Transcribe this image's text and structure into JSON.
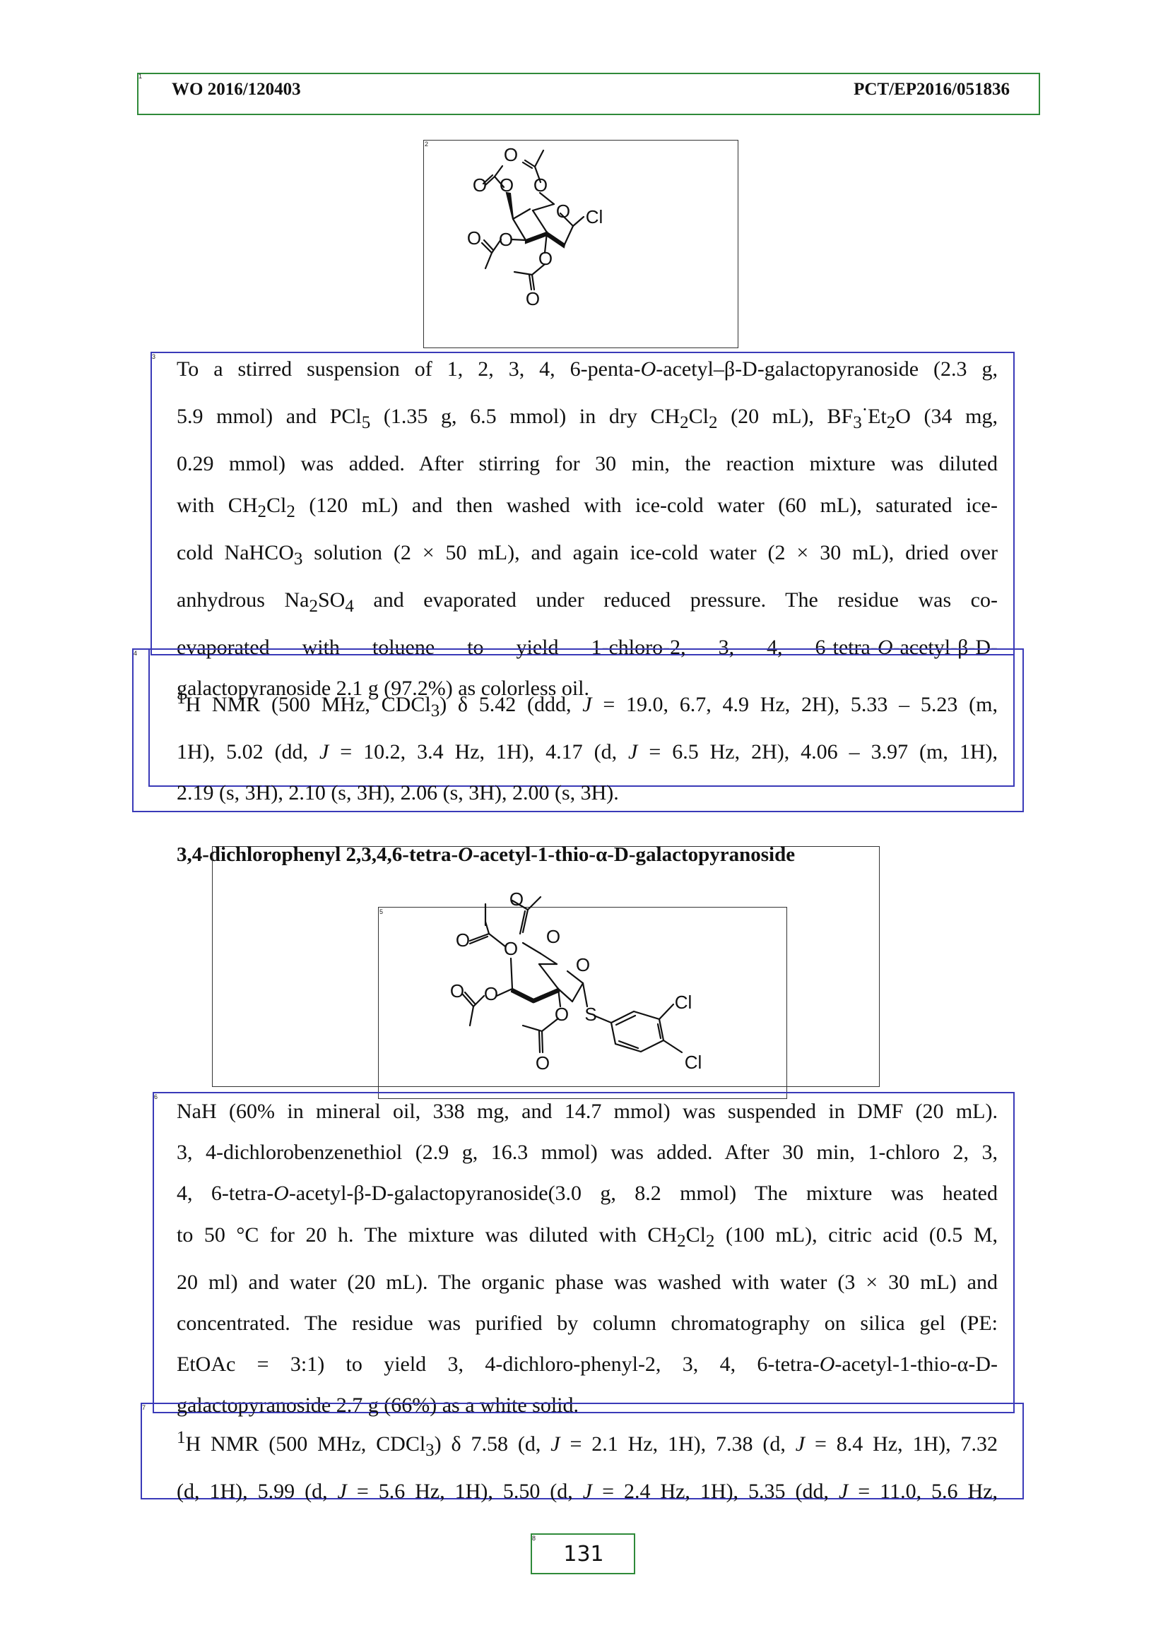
{
  "header": {
    "left": "WO 2016/120403",
    "right": "PCT/EP2016/051836"
  },
  "structure1": {
    "labels": {
      "o1": "O",
      "o2": "O",
      "o3": "O",
      "o4": "O",
      "o5": "O",
      "o6": "O",
      "o7": "O",
      "o8": "O",
      "o9": "O",
      "cl": "Cl"
    }
  },
  "para1": {
    "lines": [
      "To a stirred suspension of 1, 2, 3, 4, 6-penta-<i>O</i>-acetyl–β-D-galactopyranoside (2.3 g,",
      "5.9 mmol) and PCl<sub>5</sub> (1.35 g, 6.5 mmol) in dry CH<sub>2</sub>Cl<sub>2</sub> (20 mL), BF<sub>3</sub><sup>·</sup>Et<sub>2</sub>O (34 mg,",
      "0.29 mmol) was added. After stirring for 30 min, the reaction mixture was diluted",
      "with CH<sub>2</sub>Cl<sub>2</sub> (120 mL) and then washed with ice-cold water (60 mL), saturated ice-",
      "cold NaHCO<sub>3</sub> solution (2 × 50 mL), and again ice-cold water (2 × 30 mL), dried over",
      "anhydrous Na<sub>2</sub>SO<sub>4</sub> and evaporated under reduced pressure. The residue was co-",
      "evaporated with toluene to yield 1-chloro-2, 3, 4, 6-tetra-<i>O</i>-acetyl-β-D-",
      "galactopyranoside 2.1 g (97.2%) as colorless oil."
    ]
  },
  "nmr1": {
    "lines": [
      "<sup>1</sup>H NMR (500 MHz, CDCl<sub>3</sub>) δ 5.42 (ddd, <i>J</i> = 19.0, 6.7, 4.9 Hz, 2H), 5.33 – 5.23 (m,",
      "1H), 5.02 (dd, <i>J</i> = 10.2, 3.4 Hz, 1H), 4.17 (d, <i>J</i> = 6.5 Hz, 2H), 4.06 – 3.97 (m, 1H),",
      "2.19 (s, 3H), 2.10 (s, 3H), 2.06 (s, 3H), 2.00 (s, 3H)."
    ]
  },
  "title2": "3,4-dichlorophenyl 2,3,4,6-tetra-<i>O</i>-acetyl-1-thio-α-D-galactopyranoside",
  "structure2": {
    "labels": {
      "o1": "O",
      "o2": "O",
      "o3": "O",
      "o4": "O",
      "o5": "O",
      "o6": "O",
      "o7": "O",
      "o8": "O",
      "o9": "O",
      "s": "S",
      "cl1": "Cl",
      "cl2": "Cl"
    }
  },
  "para2": {
    "lines": [
      "NaH (60% in mineral oil, 338 mg, and 14.7 mmol) was suspended in DMF (20 mL).",
      "3, 4-dichlorobenzenethiol (2.9 g, 16.3 mmol) was added. After 30 min, 1-chloro 2, 3,",
      "4, 6-tetra-<i>O</i>-acetyl-β-D-galactopyranoside(3.0 g, 8.2 mmol) The mixture was heated",
      "to 50 °C for 20 h. The mixture was diluted with CH<sub>2</sub>Cl<sub>2</sub> (100 mL), citric acid (0.5 M,",
      "20 ml) and water (20 mL). The organic phase was washed with water (3 × 30 mL) and",
      "concentrated. The residue was purified by column chromatography on silica gel (PE:",
      "EtOAc = 3:1) to yield 3, 4-dichloro-phenyl-2, 3, 4, 6-tetra-<i>O</i>-acetyl-1-thio-α-D-",
      "galactopyranoside 2.7 g (66%) as a white solid."
    ]
  },
  "nmr2": {
    "lines": [
      "<sup>1</sup>H NMR (500 MHz, CDCl<sub>3</sub>) δ 7.58 (d, <i>J</i> = 2.1 Hz, 1H), 7.38 (d, <i>J</i> = 8.4 Hz, 1H), 7.32",
      "(d, 1H), 5.99 (d, <i>J</i> = 5.6 Hz, 1H), 5.50 (d, <i>J</i> = 2.4 Hz, 1H), 5.35 (dd, <i>J</i> = 11.0, 5.6 Hz,"
    ]
  },
  "page_number": "131"
}
